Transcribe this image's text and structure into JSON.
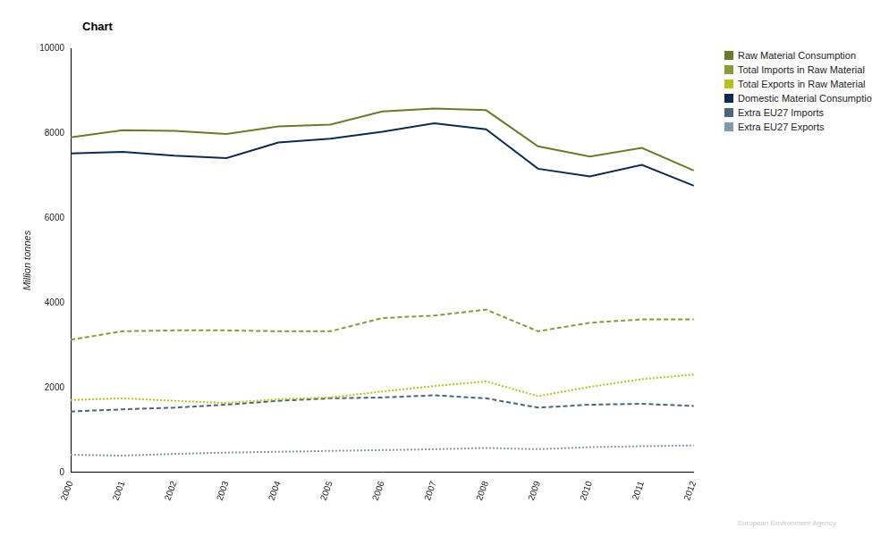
{
  "chart_data": {
    "type": "line",
    "title": "Chart",
    "y_label": "Million tonnes",
    "source": "European Environment Agency",
    "categories": [
      "2000",
      "2001",
      "2002",
      "2003",
      "2004",
      "2005",
      "2006",
      "2007",
      "2008",
      "2009",
      "2010",
      "2011",
      "2012"
    ],
    "series": [
      {
        "name": "Raw Material Consumption",
        "color": "#6b7a2a",
        "line_style": "solid",
        "values": [
          7900,
          8070,
          8050,
          7980,
          8160,
          8200,
          8510,
          8580,
          8540,
          7690,
          7450,
          7650,
          7120
        ]
      },
      {
        "name": "Total Imports in Raw Material",
        "color": "#8a9a3a",
        "line_style": "dashed",
        "values": [
          3130,
          3330,
          3350,
          3350,
          3330,
          3330,
          3640,
          3700,
          3840,
          3330,
          3530,
          3610,
          3610
        ]
      },
      {
        "name": "Total Exports in Raw Material",
        "color": "#b5c21e",
        "line_style": "dotted",
        "values": [
          1710,
          1750,
          1690,
          1640,
          1730,
          1770,
          1910,
          2040,
          2150,
          1800,
          2020,
          2200,
          2310
        ]
      },
      {
        "name": "Domestic Material Consumption",
        "color": "#0d2b4e",
        "line_style": "solid",
        "values": [
          7520,
          7560,
          7470,
          7410,
          7780,
          7870,
          8030,
          8230,
          8090,
          7160,
          6980,
          7250,
          6760
        ]
      },
      {
        "name": "Extra EU27 Imports",
        "color": "#4f6478",
        "line_style": "dashed",
        "values": [
          1440,
          1490,
          1530,
          1600,
          1690,
          1750,
          1770,
          1820,
          1750,
          1530,
          1600,
          1620,
          1570
        ]
      },
      {
        "name": "Extra EU27 Exports",
        "color": "#7f99ad",
        "line_style": "dotted",
        "values": [
          420,
          400,
          440,
          470,
          490,
          510,
          530,
          550,
          580,
          550,
          600,
          620,
          640
        ]
      }
    ],
    "ylim": [
      0,
      10000
    ],
    "yticks": [
      0,
      2000,
      4000,
      6000,
      8000,
      10000
    ],
    "grid": false,
    "legend": "right"
  }
}
